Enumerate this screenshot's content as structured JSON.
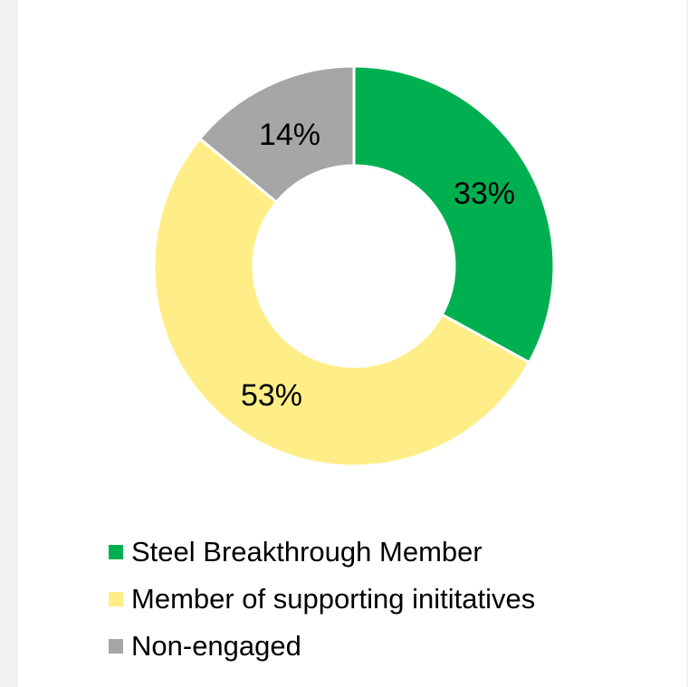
{
  "chart_data": {
    "type": "pie",
    "subtype": "donut",
    "categories": [
      "Steel Breakthrough Member",
      "Member of supporting inititatives",
      "Non-engaged"
    ],
    "values": [
      33,
      53,
      14
    ],
    "data_labels": [
      "33%",
      "53%",
      "14%"
    ],
    "colors": [
      "#00b050",
      "#ffee88",
      "#a6a6a6"
    ],
    "legend_position": "bottom"
  }
}
